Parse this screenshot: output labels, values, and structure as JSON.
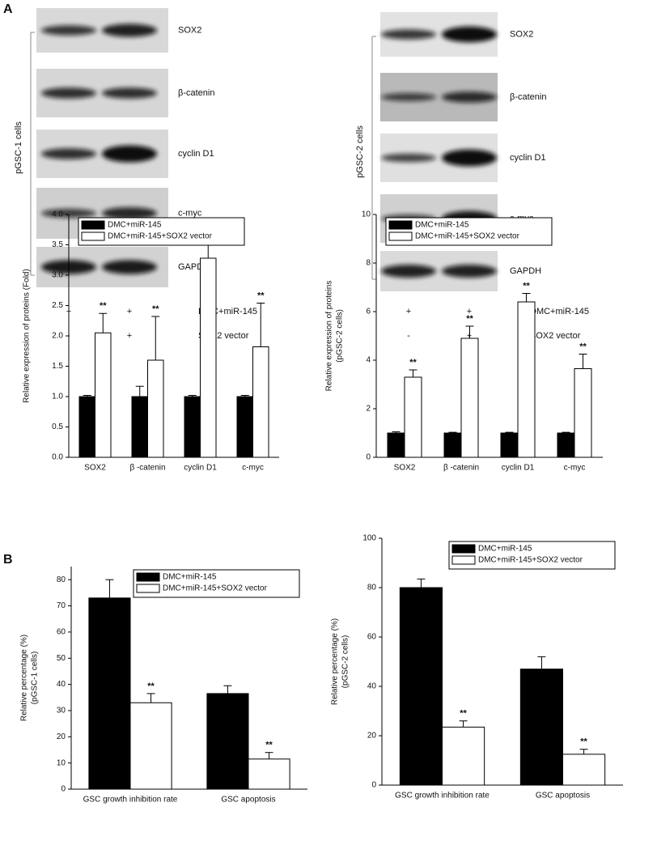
{
  "panel_labels": [
    "A",
    "B"
  ],
  "blots": [
    {
      "cell_label": "pGSC-1 cells",
      "bands": [
        "SOX2",
        "β-catenin",
        "cyclin D1",
        "c-myc",
        "GAPDH"
      ],
      "treatments": [
        {
          "signs": [
            "+",
            "+"
          ],
          "label": "DMC+miR-145"
        },
        {
          "signs": [
            "-",
            "+"
          ],
          "label": "SOX2 vector"
        }
      ]
    },
    {
      "cell_label": "pGSC-2 cells",
      "bands": [
        "SOX2",
        "β-catenin",
        "cyclin D1",
        "c-myc",
        "GAPDH"
      ],
      "treatments": [
        {
          "signs": [
            "+",
            "+"
          ],
          "label": "DMC+miR-145"
        },
        {
          "signs": [
            "-",
            "+"
          ],
          "label": "SOX2 vector"
        }
      ]
    }
  ],
  "chart_data": [
    {
      "type": "bar",
      "ylabel": [
        "Relative expression of proteins (Fold)"
      ],
      "categories": [
        "SOX2",
        "β -catenin",
        "cyclin D1",
        "c-myc"
      ],
      "series": [
        {
          "name": "DMC+miR-145",
          "color": "#000000",
          "values": [
            1,
            1,
            1,
            1
          ],
          "errors": [
            0.02,
            0.17,
            0.02,
            0.02
          ]
        },
        {
          "name": "DMC+miR-145+SOX2 vector",
          "color": "#ffffff",
          "values": [
            2.05,
            1.6,
            3.28,
            1.82
          ],
          "errors": [
            0.32,
            0.72,
            0.22,
            0.72
          ],
          "significance": [
            "**",
            "**",
            "**",
            "**"
          ]
        }
      ],
      "ylim": [
        0,
        4
      ],
      "yticks": [
        {
          "value": 0,
          "label": "0.0"
        },
        0.5,
        {
          "value": 1,
          "label": "1.0"
        },
        1.5,
        {
          "value": 2,
          "label": "2.0"
        },
        2.5,
        {
          "value": 3,
          "label": "3.0"
        },
        3.5,
        {
          "value": 4,
          "label": "4.0"
        }
      ],
      "legend_corner": "upper left"
    },
    {
      "type": "bar",
      "ylabel": [
        "Relative expression of proteins",
        "(pGSC-2 cells)"
      ],
      "categories": [
        "SOX2",
        "β -catenin",
        "cyclin D1",
        "c-myc"
      ],
      "series": [
        {
          "name": "DMC+miR-145",
          "color": "#000000",
          "values": [
            1,
            1,
            1,
            1
          ],
          "errors": [
            0.05,
            0.03,
            0.03,
            0.03
          ]
        },
        {
          "name": "DMC+miR-145+SOX2 vector",
          "color": "#ffffff",
          "values": [
            3.3,
            4.9,
            6.4,
            3.65
          ],
          "errors": [
            0.3,
            0.5,
            0.35,
            0.6
          ],
          "significance": [
            "**",
            "**",
            "**",
            "**"
          ]
        }
      ],
      "ylim": [
        0,
        10
      ],
      "yticks": [
        0,
        2,
        4,
        6,
        8,
        10
      ],
      "legend_corner": "upper left"
    },
    {
      "type": "bar",
      "ylabel": [
        "Relative percentage (%)",
        "(pGSC-1 cells)"
      ],
      "categories": [
        "GSC growth inhibition rate",
        "GSC apoptosis"
      ],
      "series": [
        {
          "name": "DMC+miR-145",
          "color": "#000000",
          "values": [
            73,
            36.5
          ],
          "errors": [
            7,
            3
          ]
        },
        {
          "name": "DMC+miR-145+SOX2 vector",
          "color": "#ffffff",
          "values": [
            33,
            11.5
          ],
          "errors": [
            3.5,
            2.5
          ],
          "significance": [
            "**",
            "**"
          ]
        }
      ],
      "ylim": [
        0,
        85
      ],
      "yticks": [
        0,
        10,
        20,
        30,
        40,
        50,
        60,
        70,
        80
      ],
      "legend_corner": "upper right"
    },
    {
      "type": "bar",
      "ylabel": [
        "Relative percentage (%)",
        "(pGSC-2 cells)"
      ],
      "categories": [
        "GSC growth inhibition rate",
        "GSC apoptosis"
      ],
      "series": [
        {
          "name": "DMC+miR-145",
          "color": "#000000",
          "values": [
            80,
            47
          ],
          "errors": [
            3.5,
            5
          ]
        },
        {
          "name": "DMC+miR-145+SOX2 vector",
          "color": "#ffffff",
          "values": [
            23.5,
            12.5
          ],
          "errors": [
            2.5,
            2
          ],
          "significance": [
            "**",
            "**"
          ]
        }
      ],
      "ylim": [
        0,
        100
      ],
      "yticks": [
        0,
        20,
        40,
        60,
        80,
        100
      ],
      "legend_corner": "upper right"
    }
  ]
}
